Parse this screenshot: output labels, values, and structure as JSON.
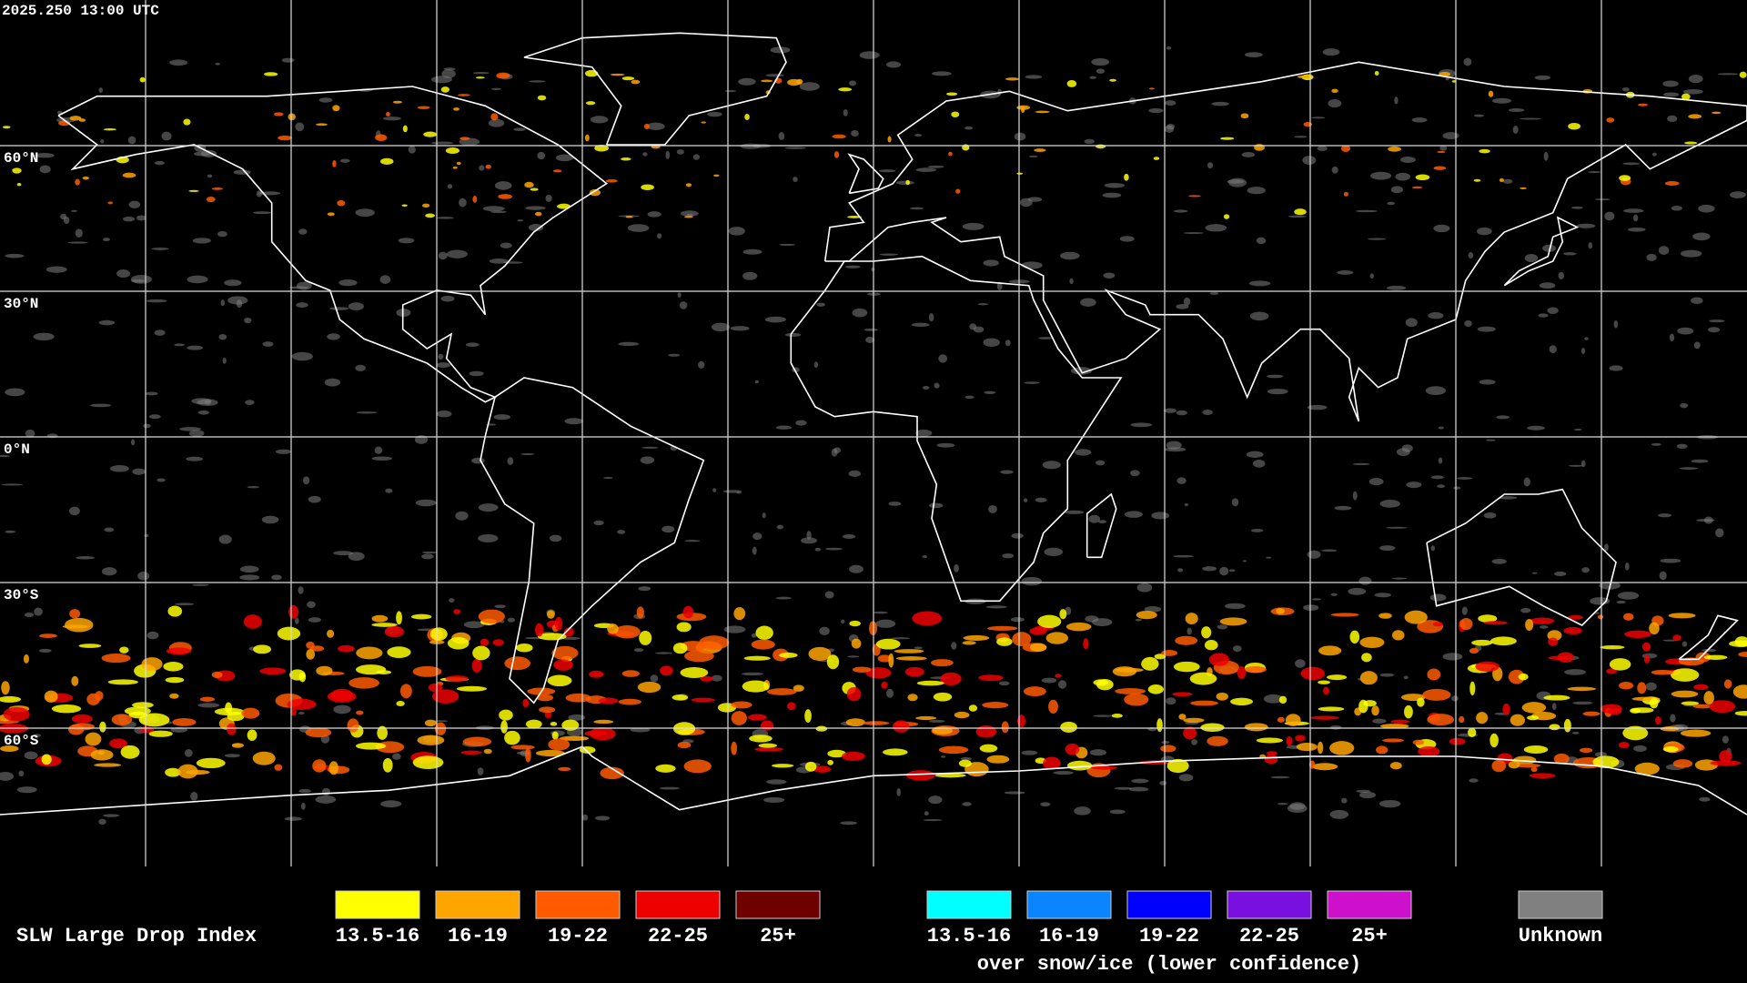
{
  "header": {
    "timestamp": "2025.250 13:00 UTC"
  },
  "map": {
    "lat_labels": [
      "60°N",
      "30°N",
      "0°N",
      "30°S",
      "60°S"
    ]
  },
  "legend": {
    "title": "SLW Large Drop Index",
    "groups": [
      {
        "items": [
          {
            "label": "13.5-16",
            "color": "#ffff00"
          },
          {
            "label": "16-19",
            "color": "#ffa500"
          },
          {
            "label": "19-22",
            "color": "#ff5a00"
          },
          {
            "label": "22-25",
            "color": "#ee0000"
          },
          {
            "label": "25+",
            "color": "#6e0000"
          }
        ]
      },
      {
        "caption": "over snow/ice (lower confidence)",
        "items": [
          {
            "label": "13.5-16",
            "color": "#00ffff"
          },
          {
            "label": "16-19",
            "color": "#0a84ff"
          },
          {
            "label": "19-22",
            "color": "#0000ff"
          },
          {
            "label": "22-25",
            "color": "#7a10e0"
          },
          {
            "label": "25+",
            "color": "#cc10cc"
          }
        ]
      },
      {
        "items": [
          {
            "label": "Unknown",
            "color": "#808080"
          }
        ]
      }
    ]
  }
}
